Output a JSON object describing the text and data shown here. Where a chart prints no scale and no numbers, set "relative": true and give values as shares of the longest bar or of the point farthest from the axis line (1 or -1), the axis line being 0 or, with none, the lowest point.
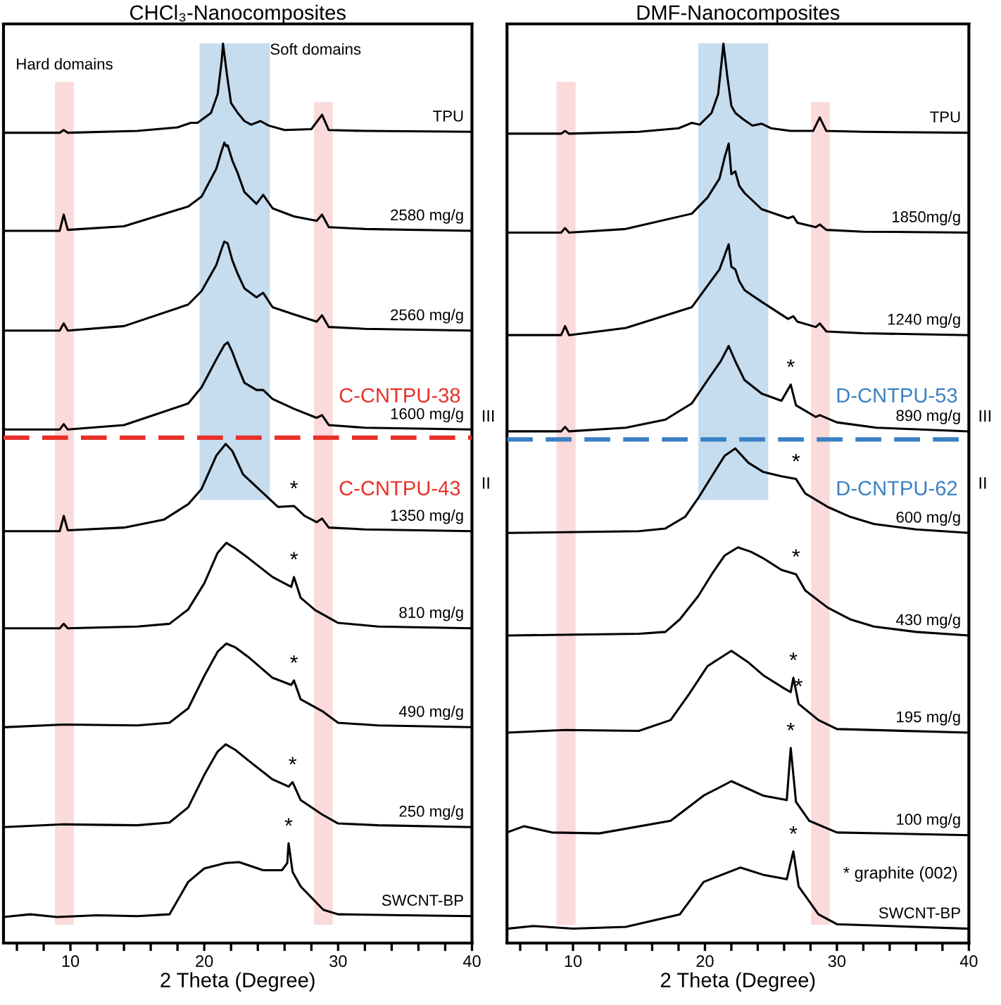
{
  "chart_data": [
    {
      "type": "line",
      "relative": true,
      "title": "CHCl₃-Nanocomposites",
      "xlabel": "2 Theta (Degree)",
      "xlim": [
        5,
        40
      ],
      "tick_labels": "x",
      "xticks": [
        {
          "value": 6,
          "label": null
        },
        {
          "value": 8,
          "label": null
        },
        10,
        {
          "value": 12,
          "label": null
        },
        {
          "value": 14,
          "label": null
        },
        {
          "value": 16,
          "label": null
        },
        {
          "value": 18,
          "label": null
        },
        20,
        {
          "value": 22,
          "label": null
        },
        {
          "value": 24,
          "label": null
        },
        {
          "value": 26,
          "label": null
        },
        {
          "value": 28,
          "label": null
        },
        30,
        {
          "value": 32,
          "label": null
        },
        {
          "value": 34,
          "label": null
        },
        {
          "value": 36,
          "label": null
        },
        {
          "value": 38,
          "label": null
        },
        40
      ],
      "series": [
        {
          "name": "TPU",
          "color": "#000000",
          "x": [
            5,
            9.2,
            9.5,
            9.8,
            15,
            18,
            19,
            19.5,
            20.5,
            21,
            21.3,
            21.4,
            21.7,
            22,
            22.5,
            23,
            23.5,
            24.2,
            24.8,
            26,
            28,
            28.8,
            29.3,
            32,
            40
          ],
          "values": [
            0.901,
            0.901,
            0.904,
            0.901,
            0.903,
            0.907,
            0.912,
            0.912,
            0.923,
            0.944,
            0.981,
            1.0,
            0.965,
            0.934,
            0.923,
            0.914,
            0.91,
            0.914,
            0.909,
            0.904,
            0.905,
            0.921,
            0.904,
            0.903,
            0.902
          ]
        },
        {
          "name": "2580 mg/g",
          "color": "#000000",
          "x": [
            5,
            9.2,
            9.5,
            9.8,
            14,
            18.8,
            19.8,
            20.9,
            21.3,
            21.5,
            21.65,
            21.75,
            22.1,
            22.5,
            23,
            23.9,
            24.4,
            25.1,
            26.7,
            28.4,
            28.8,
            29.3,
            32,
            40
          ],
          "values": [
            0.792,
            0.792,
            0.81,
            0.793,
            0.797,
            0.819,
            0.83,
            0.861,
            0.881,
            0.89,
            0.886,
            0.887,
            0.87,
            0.856,
            0.835,
            0.822,
            0.832,
            0.817,
            0.808,
            0.803,
            0.81,
            0.796,
            0.794,
            0.792
          ]
        },
        {
          "name": "2560 mg/g",
          "color": "#000000",
          "x": [
            5,
            9.2,
            9.5,
            9.8,
            14,
            18.8,
            19.8,
            20.9,
            21.3,
            21.5,
            21.75,
            22.1,
            22.5,
            23,
            23.9,
            24.4,
            25.1,
            26.7,
            28.4,
            28.8,
            29.3,
            32,
            40
          ],
          "values": [
            0.681,
            0.681,
            0.689,
            0.681,
            0.686,
            0.71,
            0.725,
            0.754,
            0.772,
            0.78,
            0.778,
            0.759,
            0.744,
            0.728,
            0.718,
            0.723,
            0.707,
            0.699,
            0.691,
            0.698,
            0.685,
            0.683,
            0.681
          ]
        },
        {
          "name": "1600 mg/g",
          "color": "#000000",
          "x": [
            5,
            9.2,
            9.5,
            9.8,
            14,
            18.8,
            19.8,
            20.9,
            21.5,
            21.75,
            22.1,
            22.5,
            23,
            23.9,
            24.4,
            25.1,
            26.7,
            28.4,
            28.8,
            29.3,
            32,
            40
          ],
          "values": [
            0.571,
            0.571,
            0.577,
            0.571,
            0.576,
            0.6,
            0.618,
            0.649,
            0.665,
            0.668,
            0.657,
            0.641,
            0.623,
            0.615,
            0.615,
            0.605,
            0.594,
            0.584,
            0.587,
            0.576,
            0.573,
            0.571
          ]
        },
        {
          "name": "1350 mg/g",
          "color": "#000000",
          "x": [
            5,
            9.2,
            9.5,
            9.8,
            14,
            17,
            18.8,
            19.8,
            20.9,
            21.6,
            22.1,
            22.9,
            24.2,
            25.5,
            26.7,
            27.5,
            28.4,
            28.8,
            29.3,
            32,
            40
          ],
          "values": [
            0.458,
            0.458,
            0.475,
            0.459,
            0.462,
            0.471,
            0.488,
            0.505,
            0.542,
            0.555,
            0.547,
            0.521,
            0.503,
            0.485,
            0.486,
            0.475,
            0.468,
            0.472,
            0.462,
            0.46,
            0.458
          ]
        },
        {
          "name": "810 mg/g",
          "color": "#000000",
          "x": [
            5,
            9.2,
            9.5,
            9.8,
            15,
            17.4,
            18.8,
            20,
            21,
            21.65,
            22.3,
            23.3,
            25.1,
            26.5,
            26.7,
            27.2,
            28.3,
            28.8,
            30,
            33,
            40
          ],
          "values": [
            0.35,
            0.35,
            0.355,
            0.35,
            0.352,
            0.355,
            0.371,
            0.4,
            0.434,
            0.445,
            0.439,
            0.428,
            0.407,
            0.396,
            0.407,
            0.384,
            0.37,
            0.366,
            0.356,
            0.352,
            0.35
          ]
        },
        {
          "name": "490 mg/g",
          "color": "#000000",
          "x": [
            5,
            9.5,
            15,
            17.4,
            18.8,
            20,
            21,
            21.65,
            22.3,
            23.3,
            25.1,
            26.5,
            26.7,
            27.2,
            28.8,
            30,
            33,
            40
          ],
          "values": [
            0.24,
            0.243,
            0.242,
            0.245,
            0.261,
            0.297,
            0.324,
            0.333,
            0.329,
            0.318,
            0.295,
            0.287,
            0.292,
            0.271,
            0.258,
            0.245,
            0.242,
            0.24
          ]
        },
        {
          "name": "250 mg/g",
          "color": "#000000",
          "x": [
            5,
            9.5,
            15,
            17.4,
            18.8,
            20,
            21,
            21.6,
            22.3,
            23.3,
            25.1,
            26.3,
            26.6,
            27.2,
            28.8,
            30,
            33,
            40
          ],
          "values": [
            0.129,
            0.132,
            0.131,
            0.134,
            0.151,
            0.187,
            0.213,
            0.221,
            0.215,
            0.203,
            0.182,
            0.174,
            0.179,
            0.159,
            0.143,
            0.133,
            0.131,
            0.129
          ]
        },
        {
          "name": "SWCNT-BP",
          "color": "#000000",
          "x": [
            5,
            7,
            9,
            12,
            15,
            17.4,
            18.8,
            20,
            21.6,
            22.6,
            24.4,
            25.8,
            26.2,
            26.3,
            26.6,
            27.2,
            28.9,
            30,
            35,
            40
          ],
          "values": [
            0.029,
            0.032,
            0.029,
            0.031,
            0.03,
            0.032,
            0.068,
            0.083,
            0.089,
            0.09,
            0.081,
            0.081,
            0.089,
            0.111,
            0.079,
            0.063,
            0.037,
            0.032,
            0.031,
            0.03
          ]
        }
      ],
      "bands": [
        {
          "axis": "x",
          "from": 8.85,
          "to": 10.25,
          "label": "Hard domains",
          "color": "#f9d3d3"
        },
        {
          "axis": "x",
          "from": 28.2,
          "to": 29.6,
          "label": null,
          "color": "#f9d3d3"
        },
        {
          "axis": "x",
          "from": 19.65,
          "to": 24.9,
          "label": "Soft domains",
          "color": "#bcd6ec"
        }
      ],
      "ref_lines": [
        {
          "axis": "y",
          "value": 0.562,
          "label": null,
          "color": "#e8302a",
          "line_style": "dashed"
        }
      ],
      "annotations": [
        "C-CNTPU-38",
        "C-CNTPU-43",
        "III",
        "II",
        {
          "text": "*",
          "x": 26.7,
          "y": 0.486
        },
        {
          "text": "*",
          "x": 26.7,
          "y": 0.407
        },
        {
          "text": "*",
          "x": 26.7,
          "y": 0.292
        },
        {
          "text": "*",
          "x": 26.6,
          "y": 0.179
        },
        {
          "text": "*",
          "x": 26.3,
          "y": 0.111
        }
      ]
    },
    {
      "type": "line",
      "relative": true,
      "title": "DMF-Nanocomposites",
      "xlabel": "2 Theta (Degree)",
      "xlim": [
        5,
        40
      ],
      "tick_labels": "x",
      "xticks": [
        {
          "value": 6,
          "label": null
        },
        {
          "value": 8,
          "label": null
        },
        10,
        {
          "value": 12,
          "label": null
        },
        {
          "value": 14,
          "label": null
        },
        {
          "value": 16,
          "label": null
        },
        {
          "value": 18,
          "label": null
        },
        20,
        {
          "value": 22,
          "label": null
        },
        {
          "value": 24,
          "label": null
        },
        {
          "value": 26,
          "label": null
        },
        {
          "value": 28,
          "label": null
        },
        30,
        {
          "value": 32,
          "label": null
        },
        {
          "value": 34,
          "label": null
        },
        {
          "value": 36,
          "label": null
        },
        {
          "value": 38,
          "label": null
        },
        40
      ],
      "series": [
        {
          "name": "TPU",
          "color": "#000000",
          "x": [
            5,
            9.1,
            9.4,
            9.7,
            15,
            18,
            19,
            19.6,
            20.5,
            21,
            21.25,
            21.4,
            21.7,
            22,
            22.3,
            22.9,
            23.6,
            24.3,
            25,
            26.5,
            28.2,
            28.7,
            29.2,
            32,
            40
          ],
          "values": [
            0.9,
            0.9,
            0.903,
            0.9,
            0.902,
            0.906,
            0.912,
            0.91,
            0.923,
            0.944,
            0.978,
            1.0,
            0.963,
            0.931,
            0.923,
            0.916,
            0.909,
            0.911,
            0.906,
            0.903,
            0.903,
            0.918,
            0.903,
            0.902,
            0.901
          ]
        },
        {
          "name": "1850mg/g",
          "color": "#000000",
          "x": [
            5,
            9.1,
            9.4,
            9.7,
            14,
            19,
            20.2,
            21.1,
            21.5,
            21.8,
            22.0,
            22.3,
            22.6,
            23,
            24.3,
            26.3,
            26.7,
            27,
            28.4,
            28.7,
            29.2,
            32,
            40
          ],
          "values": [
            0.79,
            0.79,
            0.795,
            0.79,
            0.794,
            0.811,
            0.829,
            0.85,
            0.874,
            0.889,
            0.855,
            0.858,
            0.842,
            0.834,
            0.816,
            0.806,
            0.808,
            0.801,
            0.796,
            0.799,
            0.793,
            0.791,
            0.79
          ]
        },
        {
          "name": "1240 mg/g",
          "color": "#000000",
          "x": [
            5,
            9.1,
            9.4,
            9.7,
            14,
            19,
            20.2,
            21.1,
            21.5,
            21.8,
            22.0,
            22.3,
            22.6,
            23,
            24.3,
            26.3,
            26.7,
            27,
            28.4,
            28.7,
            29.2,
            32,
            40
          ],
          "values": [
            0.676,
            0.676,
            0.686,
            0.676,
            0.684,
            0.707,
            0.731,
            0.749,
            0.765,
            0.777,
            0.752,
            0.749,
            0.736,
            0.726,
            0.713,
            0.694,
            0.697,
            0.691,
            0.685,
            0.689,
            0.68,
            0.678,
            0.676
          ]
        },
        {
          "name": "890 mg/g",
          "color": "#000000",
          "x": [
            5,
            9.1,
            9.4,
            9.7,
            14,
            17,
            19,
            20.2,
            21.2,
            21.8,
            22.3,
            23,
            24.3,
            25.8,
            26.5,
            26.9,
            28.4,
            28.7,
            30,
            33,
            40
          ],
          "values": [
            0.569,
            0.569,
            0.574,
            0.569,
            0.573,
            0.582,
            0.6,
            0.626,
            0.647,
            0.664,
            0.647,
            0.626,
            0.611,
            0.603,
            0.621,
            0.598,
            0.585,
            0.587,
            0.579,
            0.573,
            0.569
          ]
        },
        {
          "name": "600 mg/g",
          "color": "#000000",
          "x": [
            5,
            15,
            17,
            18.5,
            19.5,
            20.6,
            21.5,
            22.3,
            23.3,
            24.4,
            25.8,
            26.9,
            27.6,
            29.3,
            31,
            32.8,
            36,
            40
          ],
          "values": [
            0.456,
            0.458,
            0.461,
            0.474,
            0.495,
            0.521,
            0.542,
            0.55,
            0.534,
            0.524,
            0.519,
            0.516,
            0.5,
            0.485,
            0.474,
            0.466,
            0.46,
            0.456
          ]
        },
        {
          "name": "430 mg/g",
          "color": "#000000",
          "x": [
            5,
            15,
            17,
            18.1,
            19.5,
            20.6,
            21.5,
            22.5,
            23.5,
            24.4,
            25.8,
            26.9,
            27.6,
            29.3,
            31,
            32.8,
            36,
            40
          ],
          "values": [
            0.342,
            0.344,
            0.346,
            0.36,
            0.386,
            0.412,
            0.431,
            0.44,
            0.435,
            0.428,
            0.415,
            0.41,
            0.392,
            0.373,
            0.36,
            0.352,
            0.346,
            0.342
          ]
        },
        {
          "name": "195 mg/g",
          "color": "#000000",
          "x": [
            5,
            9.4,
            15,
            17.4,
            18.8,
            20.2,
            22.0,
            23.3,
            24.4,
            25.8,
            26.5,
            26.7,
            27.1,
            28.6,
            30,
            40
          ],
          "values": [
            0.234,
            0.237,
            0.236,
            0.248,
            0.277,
            0.308,
            0.325,
            0.312,
            0.298,
            0.285,
            0.279,
            0.295,
            0.266,
            0.248,
            0.238,
            0.234
          ]
        },
        {
          "name": "100 mg/g",
          "color": "#000000",
          "x": [
            5,
            6.3,
            8.4,
            12,
            17.4,
            19.9,
            22.0,
            24.4,
            26.2,
            26.5,
            26.9,
            27.9,
            30,
            40
          ],
          "values": [
            0.123,
            0.13,
            0.123,
            0.122,
            0.136,
            0.164,
            0.18,
            0.164,
            0.159,
            0.217,
            0.157,
            0.136,
            0.123,
            0.12
          ]
        },
        {
          "name": "SWCNT-BP",
          "color": "#000000",
          "x": [
            5,
            7,
            10,
            14,
            18.1,
            19.9,
            22.7,
            24.4,
            26.2,
            26.7,
            27.1,
            28.6,
            30,
            40
          ],
          "values": [
            0.016,
            0.019,
            0.016,
            0.018,
            0.032,
            0.068,
            0.084,
            0.076,
            0.071,
            0.102,
            0.063,
            0.032,
            0.021,
            0.016
          ]
        }
      ],
      "bands": [
        {
          "axis": "x",
          "from": 8.75,
          "to": 10.2,
          "label": null,
          "color": "#f9d3d3"
        },
        {
          "axis": "x",
          "from": 28.05,
          "to": 29.45,
          "label": null,
          "color": "#f9d3d3"
        },
        {
          "axis": "x",
          "from": 19.5,
          "to": 24.8,
          "label": null,
          "color": "#bcd6ec"
        }
      ],
      "ref_lines": [
        {
          "axis": "y",
          "value": 0.56,
          "label": null,
          "color": "#3a80c4",
          "line_style": "dashed"
        }
      ],
      "annotations": [
        "D-CNTPU-53",
        "D-CNTPU-62",
        "III",
        "II",
        {
          "text": "*",
          "x": 26.5,
          "y": 0.621
        },
        {
          "text": "*",
          "x": 26.9,
          "y": 0.516
        },
        {
          "text": "*",
          "x": 26.9,
          "y": 0.41
        },
        {
          "text": "*",
          "x": 26.7,
          "y": 0.295
        },
        {
          "text": "*",
          "x": 27.1,
          "y": 0.266
        },
        {
          "text": "*",
          "x": 26.5,
          "y": 0.217
        },
        {
          "text": "*",
          "x": 26.7,
          "y": 0.102
        },
        "* graphite (002)"
      ]
    }
  ]
}
